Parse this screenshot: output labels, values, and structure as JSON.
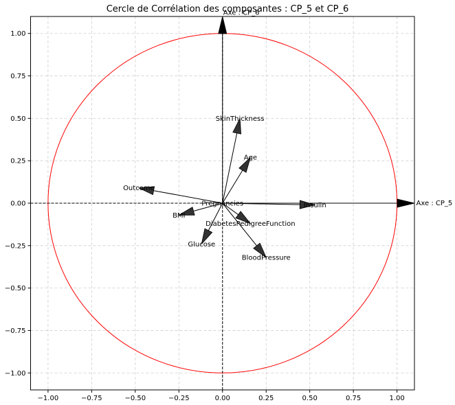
{
  "chart_data": {
    "type": "scatter",
    "title": "Cercle de Corrélation des composantes : CP_5 et CP_6",
    "xlim": [
      -1.1,
      1.1
    ],
    "ylim": [
      -1.1,
      1.1
    ],
    "grid": true,
    "x_ticks": [
      {
        "value": -1.0,
        "label": "−1.00"
      },
      {
        "value": -0.75,
        "label": "−0.75"
      },
      {
        "value": -0.5,
        "label": "−0.50"
      },
      {
        "value": -0.25,
        "label": "−0.25"
      },
      {
        "value": 0.0,
        "label": "0.00"
      },
      {
        "value": 0.25,
        "label": "0.25"
      },
      {
        "value": 0.5,
        "label": "0.50"
      },
      {
        "value": 0.75,
        "label": "0.75"
      },
      {
        "value": 1.0,
        "label": "1.00"
      }
    ],
    "y_ticks": [
      {
        "value": 1.0,
        "label": "1.00"
      },
      {
        "value": 0.75,
        "label": "0.75"
      },
      {
        "value": 0.5,
        "label": "0.50"
      },
      {
        "value": 0.25,
        "label": "0.25"
      },
      {
        "value": 0.0,
        "label": "0.00"
      },
      {
        "value": -0.25,
        "label": "−0.25"
      },
      {
        "value": -0.5,
        "label": "−0.50"
      },
      {
        "value": -0.75,
        "label": "−0.75"
      },
      {
        "value": -1.0,
        "label": "−1.00"
      }
    ],
    "circle": {
      "radius": 1.0,
      "color": "#ff0000"
    },
    "axis_labels": {
      "x": "Axe : CP_5",
      "y": "Axe : CP_6"
    },
    "variables": [
      {
        "name": "Pregnancies",
        "x": 0.0,
        "y": 0.0
      },
      {
        "name": "Glucose",
        "x": -0.12,
        "y": -0.24
      },
      {
        "name": "BloodPressure",
        "x": 0.25,
        "y": -0.32
      },
      {
        "name": "SkinThickness",
        "x": 0.1,
        "y": 0.5
      },
      {
        "name": "Insulin",
        "x": 0.53,
        "y": -0.01
      },
      {
        "name": "BMI",
        "x": -0.25,
        "y": -0.07
      },
      {
        "name": "DiabetesPedigreeFunction",
        "x": 0.16,
        "y": -0.12
      },
      {
        "name": "Age",
        "x": 0.16,
        "y": 0.27
      },
      {
        "name": "Outcome",
        "x": -0.48,
        "y": 0.09
      }
    ],
    "colors": {
      "arrow_fill": "#333333",
      "circle": "#ff0000",
      "grid": "#cfcfcf"
    }
  }
}
